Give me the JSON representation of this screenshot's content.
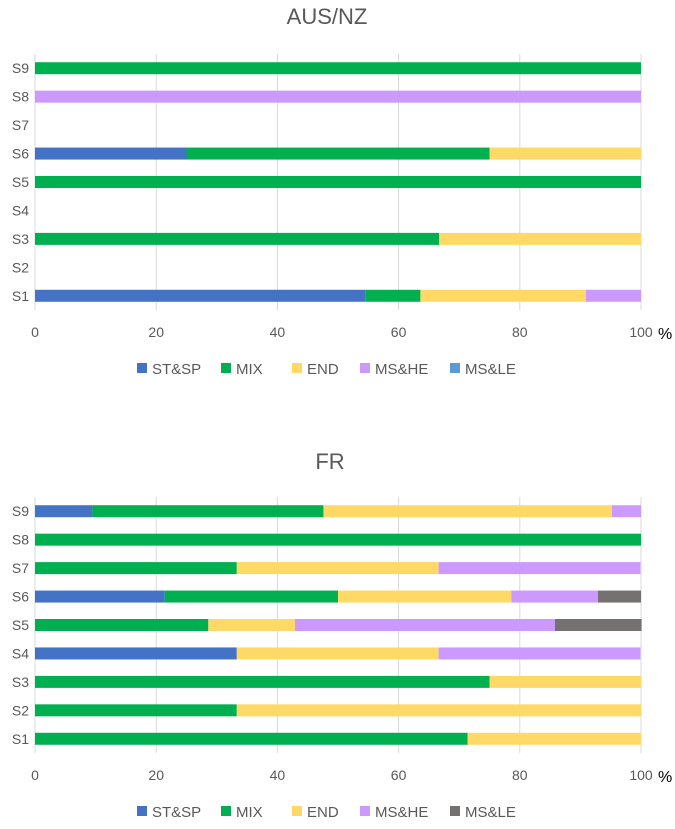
{
  "chart_data": [
    {
      "type": "bar",
      "orientation": "horizontal",
      "stacked": true,
      "title": "AUS/NZ",
      "unit_label": "%",
      "categories": [
        "S1",
        "S2",
        "S3",
        "S4",
        "S5",
        "S6",
        "S7",
        "S8",
        "S9"
      ],
      "xlim": [
        0,
        100
      ],
      "x_ticks": [
        "0",
        "20",
        "40",
        "60",
        "80",
        "100"
      ],
      "grid": true,
      "legend_position": "bottom",
      "series": [
        {
          "name": "ST&SP",
          "color": "#4472C4",
          "values": [
            54.5,
            0,
            0,
            0,
            0,
            25,
            0,
            0,
            0
          ]
        },
        {
          "name": "MIX",
          "color": "#00B050",
          "values": [
            9.1,
            0,
            66.7,
            0,
            100,
            50,
            0,
            0,
            100
          ]
        },
        {
          "name": "END",
          "color": "#FFD966",
          "values": [
            27.3,
            0,
            33.3,
            0,
            0,
            25,
            0,
            0,
            0
          ]
        },
        {
          "name": "MS&HE",
          "color": "#CC99FF",
          "values": [
            9.1,
            0,
            0,
            0,
            0,
            0,
            0,
            100,
            0
          ]
        },
        {
          "name": "MS&LE",
          "color": "#5B9BD5",
          "values": [
            0,
            0,
            0,
            0,
            0,
            0,
            0,
            0,
            0
          ]
        }
      ]
    },
    {
      "type": "bar",
      "orientation": "horizontal",
      "stacked": true,
      "title": "FR",
      "unit_label": "%",
      "categories": [
        "S1",
        "S2",
        "S3",
        "S4",
        "S5",
        "S6",
        "S7",
        "S8",
        "S9"
      ],
      "xlim": [
        0,
        100
      ],
      "x_ticks": [
        "0",
        "20",
        "40",
        "60",
        "80",
        "100"
      ],
      "grid": true,
      "legend_position": "bottom",
      "series": [
        {
          "name": "ST&SP",
          "color": "#4472C4",
          "values": [
            0,
            0,
            0,
            33.3,
            0,
            21.4,
            0,
            0,
            9.5
          ]
        },
        {
          "name": "MIX",
          "color": "#00B050",
          "values": [
            71.4,
            33.3,
            75,
            0,
            28.6,
            28.6,
            33.3,
            100,
            38.1
          ]
        },
        {
          "name": "END",
          "color": "#FFD966",
          "values": [
            28.6,
            66.7,
            25,
            33.3,
            14.3,
            28.6,
            33.3,
            0,
            47.6
          ]
        },
        {
          "name": "MS&HE",
          "color": "#CC99FF",
          "values": [
            0,
            0,
            0,
            33.3,
            42.9,
            14.3,
            33.3,
            0,
            4.8
          ]
        },
        {
          "name": "MS&LE",
          "color": "#767171",
          "values": [
            0,
            0,
            0,
            0,
            14.3,
            7.1,
            0,
            0,
            0
          ]
        }
      ]
    }
  ]
}
